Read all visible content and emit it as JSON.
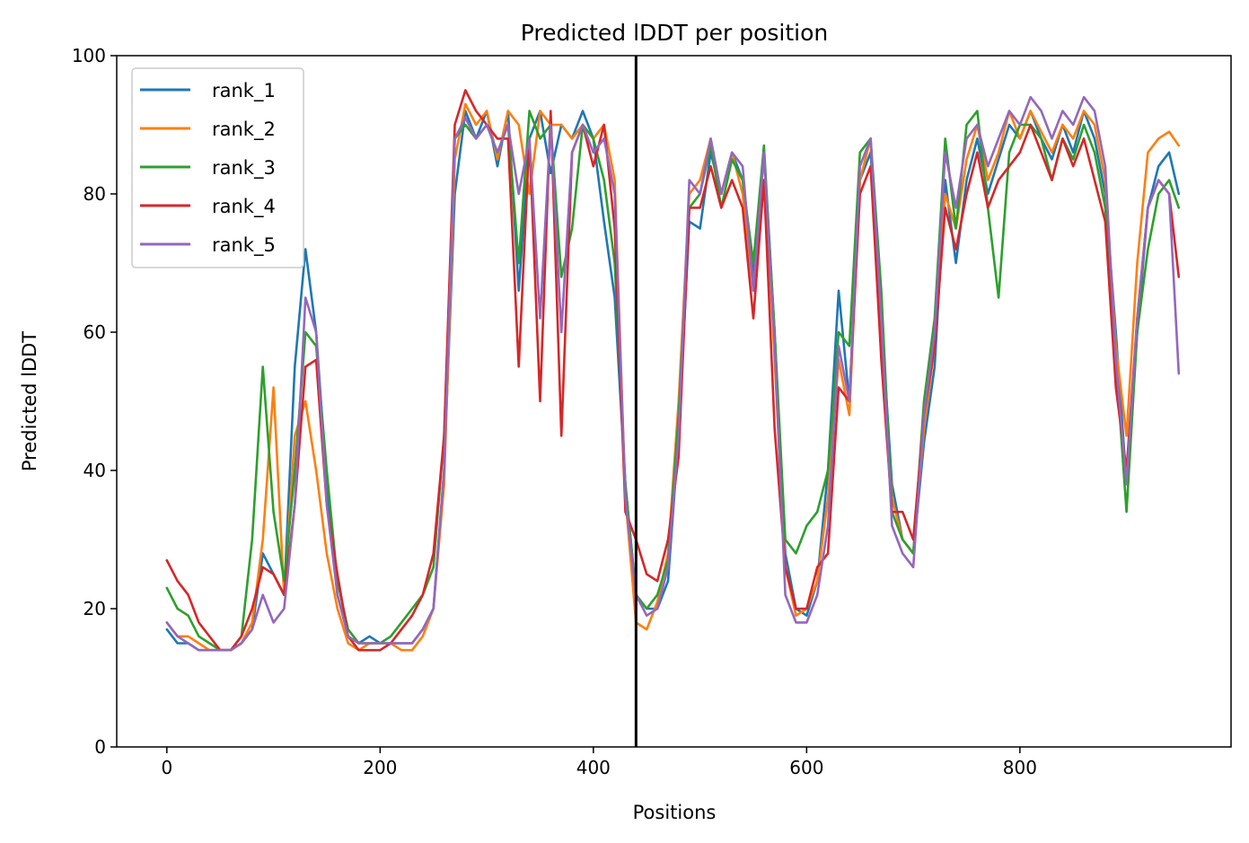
{
  "chart_data": {
    "type": "line",
    "title": "Predicted lDDT per position",
    "xlabel": "Positions",
    "ylabel": "Predicted lDDT",
    "xlim": [
      -47,
      998
    ],
    "ylim": [
      0,
      100
    ],
    "xticks": [
      0,
      200,
      400,
      600,
      800
    ],
    "yticks": [
      0,
      20,
      40,
      60,
      80,
      100
    ],
    "grid": false,
    "legend_position": "top-left",
    "vline_x": 440,
    "vline_color": "#000000",
    "x": [
      0,
      10,
      20,
      30,
      40,
      50,
      60,
      70,
      80,
      90,
      100,
      110,
      120,
      130,
      140,
      150,
      160,
      170,
      180,
      190,
      200,
      210,
      220,
      230,
      240,
      250,
      260,
      270,
      280,
      290,
      300,
      310,
      320,
      330,
      340,
      350,
      360,
      370,
      380,
      390,
      400,
      410,
      420,
      430,
      440,
      450,
      460,
      470,
      480,
      490,
      500,
      510,
      520,
      530,
      540,
      550,
      560,
      570,
      580,
      590,
      600,
      610,
      620,
      630,
      640,
      650,
      660,
      670,
      680,
      690,
      700,
      710,
      720,
      730,
      740,
      750,
      760,
      770,
      780,
      790,
      800,
      810,
      820,
      830,
      840,
      850,
      860,
      870,
      880,
      890,
      900,
      910,
      920,
      930,
      940,
      949
    ],
    "series": [
      {
        "name": "rank_1",
        "color": "#1f77b4",
        "values": [
          17,
          15,
          15,
          14,
          14,
          14,
          14,
          15,
          17,
          28,
          25,
          22,
          55,
          72,
          60,
          38,
          22,
          16,
          15,
          16,
          15,
          15,
          15,
          15,
          17,
          20,
          40,
          80,
          92,
          88,
          92,
          84,
          92,
          66,
          88,
          92,
          83,
          90,
          88,
          92,
          88,
          76,
          65,
          38,
          22,
          20,
          20,
          24,
          45,
          76,
          75,
          86,
          80,
          86,
          82,
          68,
          86,
          60,
          28,
          20,
          19,
          24,
          40,
          66,
          50,
          82,
          86,
          62,
          38,
          30,
          28,
          44,
          55,
          82,
          70,
          82,
          88,
          80,
          85,
          90,
          88,
          92,
          88,
          85,
          90,
          86,
          92,
          88,
          80,
          60,
          38,
          60,
          78,
          84,
          86,
          80
        ]
      },
      {
        "name": "rank_2",
        "color": "#ff7f0e",
        "values": [
          18,
          16,
          16,
          15,
          14,
          14,
          14,
          15,
          18,
          30,
          52,
          22,
          45,
          50,
          40,
          28,
          20,
          15,
          14,
          15,
          15,
          15,
          14,
          14,
          16,
          20,
          38,
          85,
          93,
          90,
          92,
          85,
          92,
          90,
          80,
          92,
          90,
          90,
          88,
          90,
          88,
          90,
          82,
          36,
          18,
          17,
          21,
          28,
          50,
          80,
          82,
          88,
          80,
          86,
          80,
          66,
          86,
          56,
          26,
          19,
          20,
          24,
          36,
          56,
          48,
          82,
          88,
          60,
          36,
          30,
          28,
          46,
          58,
          80,
          75,
          85,
          90,
          82,
          86,
          92,
          88,
          92,
          89,
          86,
          90,
          88,
          92,
          90,
          82,
          58,
          45,
          70,
          86,
          88,
          89,
          87
        ]
      },
      {
        "name": "rank_3",
        "color": "#2ca02c",
        "values": [
          23,
          20,
          19,
          16,
          15,
          14,
          14,
          16,
          30,
          55,
          34,
          24,
          40,
          60,
          58,
          40,
          24,
          17,
          15,
          15,
          15,
          16,
          18,
          20,
          22,
          26,
          45,
          88,
          90,
          88,
          90,
          86,
          90,
          70,
          92,
          88,
          90,
          68,
          75,
          90,
          88,
          82,
          70,
          38,
          22,
          20,
          22,
          27,
          48,
          78,
          80,
          87,
          78,
          85,
          82,
          70,
          87,
          60,
          30,
          28,
          32,
          34,
          40,
          60,
          58,
          86,
          88,
          66,
          34,
          30,
          28,
          50,
          62,
          88,
          75,
          90,
          92,
          78,
          65,
          86,
          90,
          90,
          88,
          82,
          88,
          85,
          90,
          86,
          78,
          56,
          34,
          60,
          72,
          80,
          82,
          78
        ]
      },
      {
        "name": "rank_4",
        "color": "#d62728",
        "values": [
          27,
          24,
          22,
          18,
          16,
          14,
          14,
          16,
          20,
          26,
          25,
          22,
          35,
          55,
          56,
          35,
          25,
          16,
          14,
          14,
          14,
          15,
          17,
          19,
          22,
          28,
          45,
          90,
          95,
          92,
          90,
          88,
          88,
          55,
          88,
          50,
          92,
          45,
          86,
          90,
          84,
          90,
          75,
          34,
          30,
          25,
          24,
          30,
          42,
          78,
          78,
          84,
          78,
          82,
          78,
          62,
          82,
          46,
          26,
          20,
          20,
          26,
          28,
          52,
          50,
          80,
          84,
          56,
          34,
          34,
          30,
          48,
          58,
          78,
          72,
          80,
          86,
          78,
          82,
          84,
          86,
          90,
          86,
          82,
          88,
          84,
          88,
          82,
          76,
          52,
          40,
          62,
          78,
          82,
          80,
          68
        ]
      },
      {
        "name": "rank_5",
        "color": "#9467bd",
        "values": [
          18,
          16,
          15,
          14,
          14,
          14,
          14,
          15,
          17,
          22,
          18,
          20,
          35,
          65,
          60,
          35,
          22,
          16,
          15,
          15,
          15,
          15,
          15,
          15,
          17,
          20,
          40,
          88,
          91,
          88,
          90,
          86,
          90,
          80,
          88,
          62,
          90,
          60,
          86,
          90,
          86,
          88,
          80,
          36,
          22,
          19,
          20,
          26,
          45,
          82,
          80,
          88,
          80,
          86,
          84,
          66,
          86,
          58,
          22,
          18,
          18,
          22,
          32,
          58,
          50,
          84,
          88,
          62,
          32,
          28,
          26,
          48,
          60,
          86,
          78,
          88,
          90,
          84,
          88,
          92,
          90,
          94,
          92,
          88,
          92,
          90,
          94,
          92,
          84,
          56,
          38,
          62,
          78,
          82,
          80,
          54
        ]
      }
    ]
  }
}
